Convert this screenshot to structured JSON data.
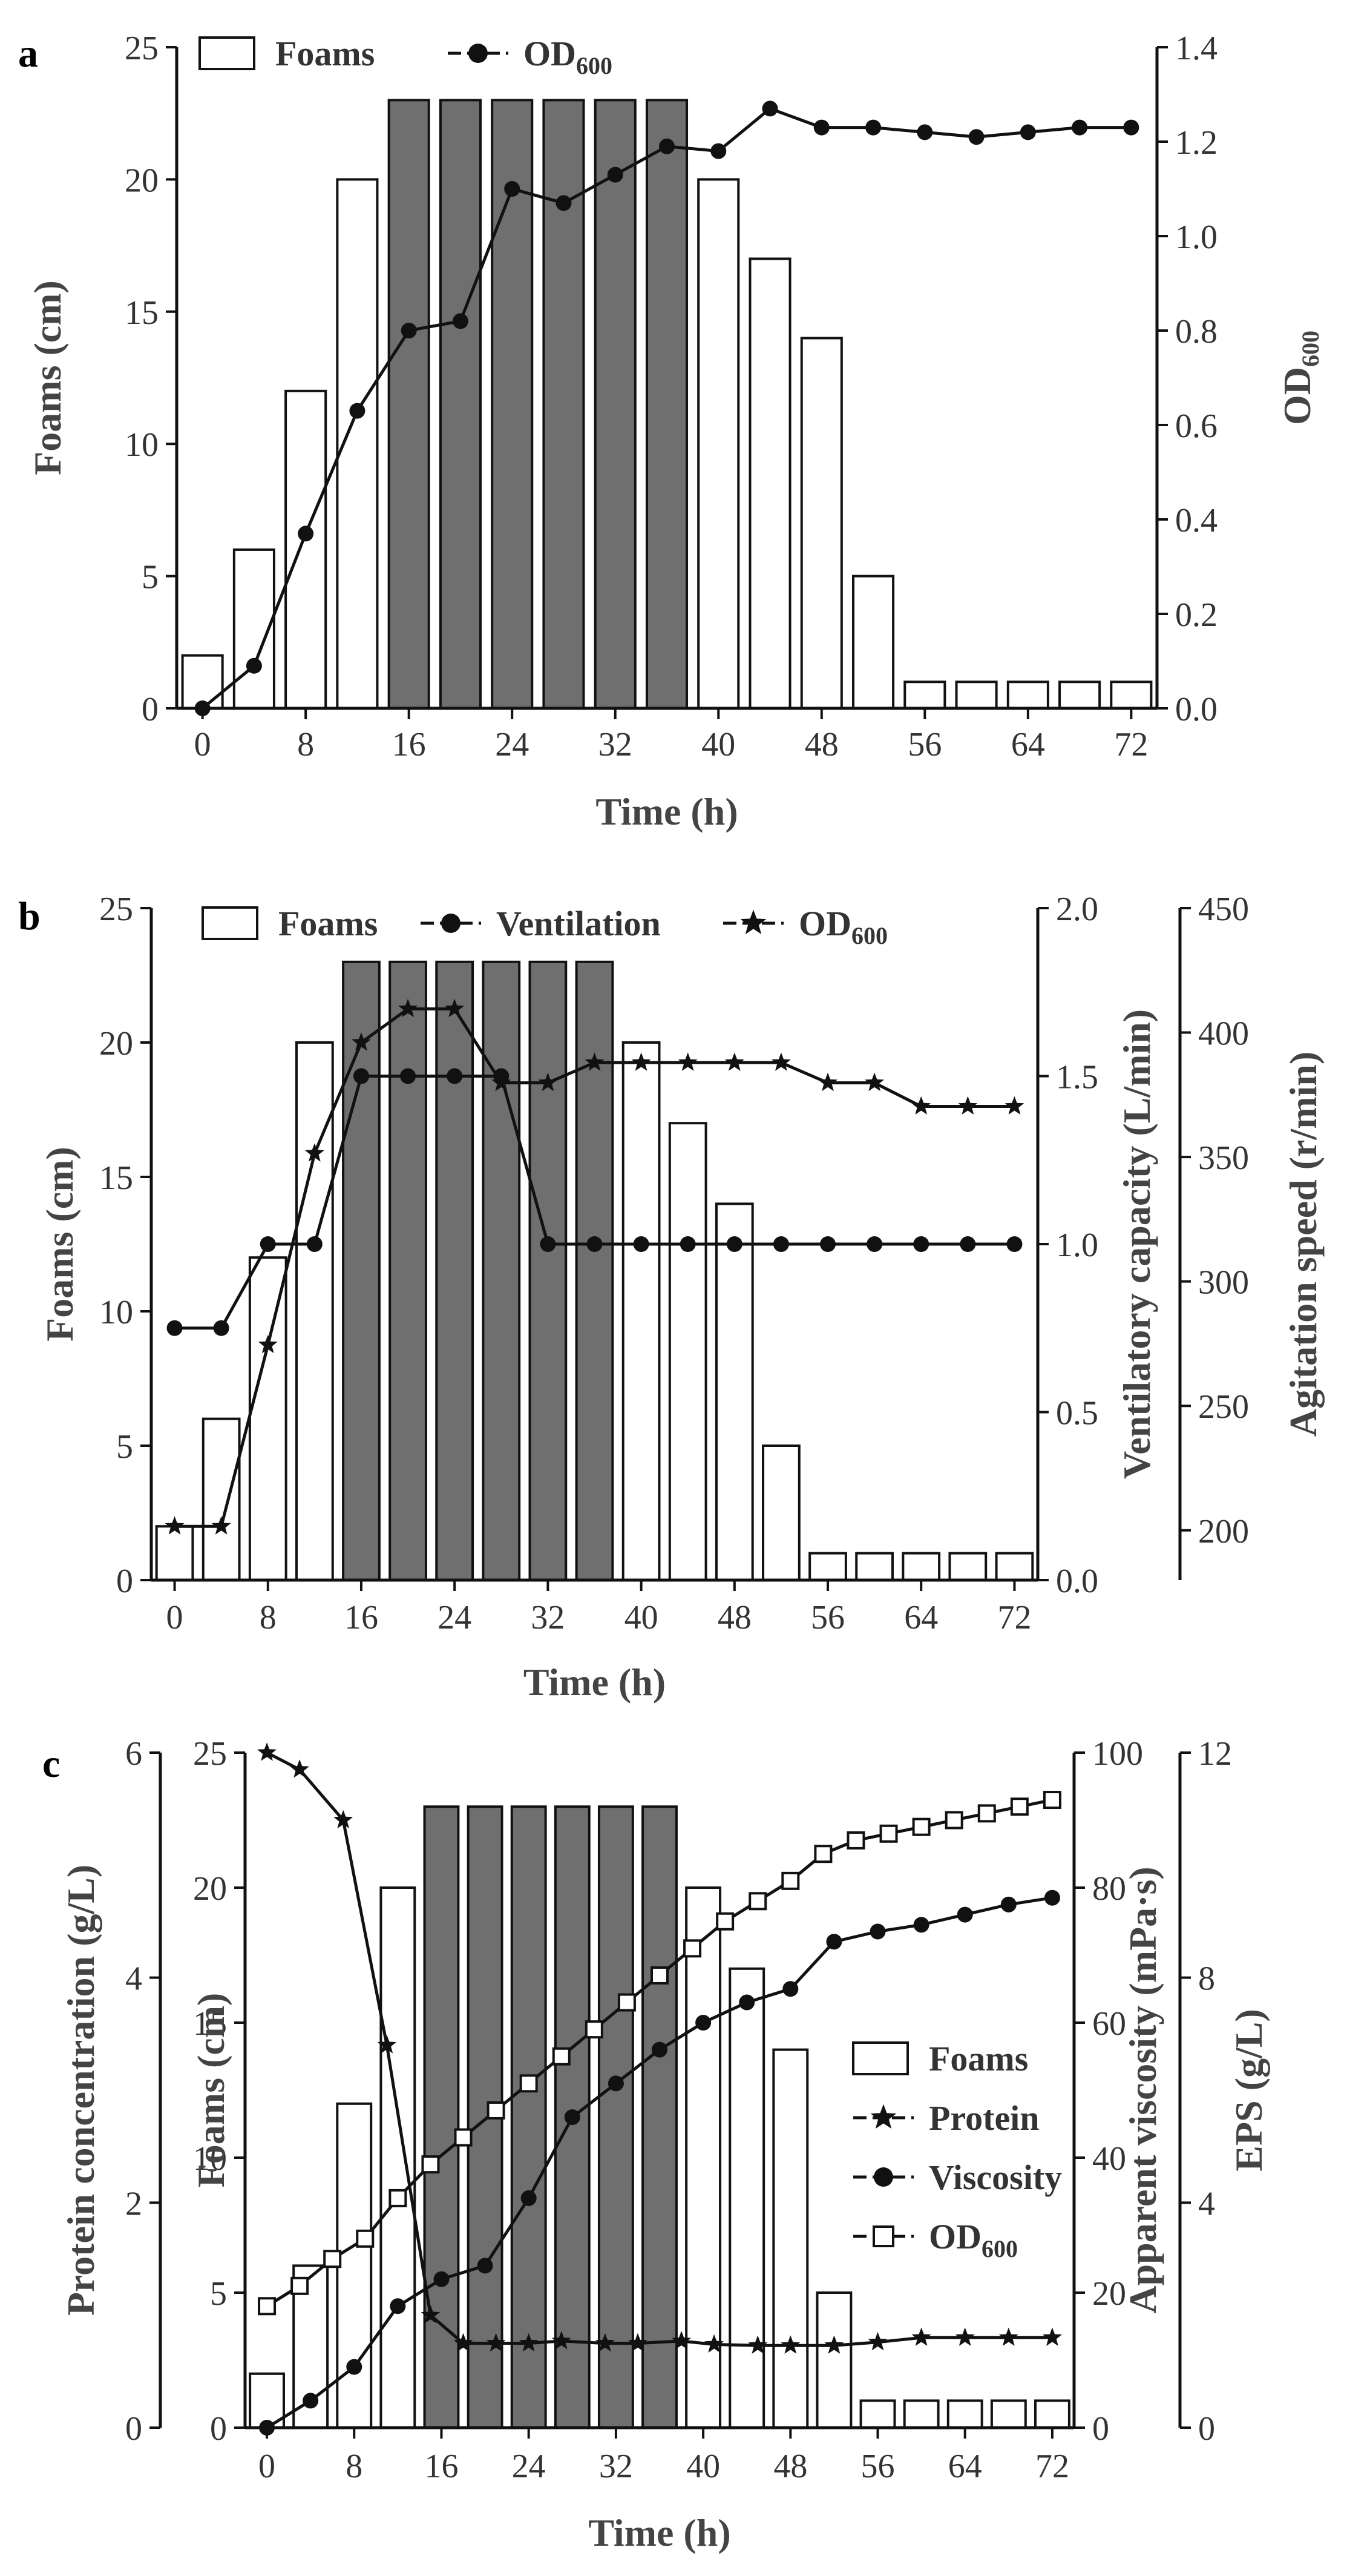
{
  "chart_data": [
    {
      "panel": "a",
      "type": "bar",
      "xlabel": "Time (h)",
      "x_ticks": [
        "0",
        "8",
        "16",
        "24",
        "32",
        "40",
        "48",
        "56",
        "64",
        "72"
      ],
      "xlim": [
        -2,
        74
      ],
      "left_axis": {
        "label": "Foams (cm)",
        "ylim": [
          0,
          25
        ],
        "ticks": [
          "0",
          "5",
          "10",
          "15",
          "20",
          "25"
        ]
      },
      "right_axes": [
        {
          "label": "OD600",
          "label_main": "OD",
          "label_sub": "600",
          "ylim": [
            0,
            1.4
          ],
          "ticks": [
            "0.0",
            "0.2",
            "0.4",
            "0.6",
            "0.8",
            "1.0",
            "1.2",
            "1.4"
          ]
        }
      ],
      "legend": [
        {
          "label": "Foams",
          "label_main": "Foams",
          "label_sub": "",
          "marker": "bar"
        },
        {
          "label": "OD600",
          "label_main": "OD",
          "label_sub": "600",
          "marker": "circle"
        }
      ],
      "bars": {
        "name": "Foams",
        "x": [
          0,
          4,
          8,
          12,
          16,
          20,
          24,
          28,
          32,
          36,
          40,
          44,
          48,
          52,
          56,
          60,
          64,
          68,
          72
        ],
        "values": [
          2,
          6,
          12,
          20,
          23,
          23,
          23,
          23,
          23,
          23,
          20,
          17,
          14,
          5,
          1,
          1,
          1,
          1,
          1
        ],
        "shaded": [
          false,
          false,
          false,
          false,
          true,
          true,
          true,
          true,
          true,
          true,
          false,
          false,
          false,
          false,
          false,
          false,
          false,
          false,
          false
        ]
      },
      "series": [
        {
          "name": "OD600",
          "axis": 0,
          "marker": "circle",
          "x": [
            0,
            4,
            8,
            12,
            16,
            20,
            24,
            28,
            32,
            36,
            40,
            44,
            48,
            52,
            56,
            60,
            64,
            68,
            72
          ],
          "values": [
            0.0,
            0.09,
            0.37,
            0.63,
            0.8,
            0.82,
            1.1,
            1.07,
            1.13,
            1.19,
            1.18,
            1.27,
            1.23,
            1.23,
            1.22,
            1.21,
            1.22,
            1.23,
            1.23
          ]
        }
      ]
    },
    {
      "panel": "b",
      "type": "bar",
      "xlabel": "Time (h)",
      "x_ticks": [
        "0",
        "8",
        "16",
        "24",
        "32",
        "40",
        "48",
        "56",
        "64",
        "72"
      ],
      "xlim": [
        -2,
        74
      ],
      "left_axis": {
        "label": "Foams (cm)",
        "ylim": [
          0,
          25
        ],
        "ticks": [
          "0",
          "5",
          "10",
          "15",
          "20",
          "25"
        ]
      },
      "right_axes": [
        {
          "label": "Ventilatory capacity (L/min)",
          "ylim": [
            0,
            2.0
          ],
          "ticks": [
            "0.0",
            "0.5",
            "1.0",
            "1.5",
            "2.0"
          ]
        },
        {
          "label": "Agitation speed (r/min)",
          "ylim": [
            180,
            450
          ],
          "ticks": [
            "200",
            "250",
            "300",
            "350",
            "400",
            "450"
          ]
        }
      ],
      "legend": [
        {
          "label": "Foams",
          "label_main": "Foams",
          "label_sub": "",
          "marker": "bar"
        },
        {
          "label": "Ventilation",
          "label_main": "Ventilation",
          "label_sub": "",
          "marker": "circle"
        },
        {
          "label": "OD600",
          "label_main": "OD",
          "label_sub": "600",
          "marker": "star"
        }
      ],
      "bars": {
        "name": "Foams",
        "x": [
          0,
          4,
          8,
          12,
          16,
          20,
          24,
          28,
          32,
          36,
          40,
          44,
          48,
          52,
          56,
          60,
          64,
          68,
          72
        ],
        "values": [
          2,
          6,
          12,
          20,
          23,
          23,
          23,
          23,
          23,
          23,
          20,
          17,
          14,
          5,
          1,
          1,
          1,
          1,
          1
        ],
        "shaded": [
          false,
          false,
          false,
          false,
          true,
          true,
          true,
          true,
          true,
          true,
          false,
          false,
          false,
          false,
          false,
          false,
          false,
          false,
          false
        ]
      },
      "series": [
        {
          "name": "Ventilation",
          "axis": 0,
          "marker": "circle",
          "x": [
            0,
            4,
            8,
            12,
            16,
            20,
            24,
            28,
            32,
            36,
            40,
            44,
            48,
            52,
            56,
            60,
            64,
            68,
            72
          ],
          "values": [
            0.75,
            0.75,
            1.0,
            1.0,
            1.5,
            1.5,
            1.5,
            1.5,
            1.0,
            1.0,
            1.0,
            1.0,
            1.0,
            1.0,
            1.0,
            1.0,
            1.0,
            1.0,
            1.0
          ]
        },
        {
          "name": "OD600",
          "axis": 0,
          "marker": "star",
          "x": [
            0,
            4,
            8,
            12,
            16,
            20,
            24,
            28,
            32,
            36,
            40,
            44,
            48,
            52,
            56,
            60,
            64,
            68,
            72
          ],
          "values": [
            0.16,
            0.16,
            0.7,
            1.27,
            1.6,
            1.7,
            1.7,
            1.48,
            1.48,
            1.54,
            1.54,
            1.54,
            1.54,
            1.54,
            1.48,
            1.48,
            1.41,
            1.41,
            1.41
          ]
        }
      ]
    },
    {
      "panel": "c",
      "type": "bar",
      "xlabel": "Time (h)",
      "x_ticks": [
        "0",
        "8",
        "16",
        "24",
        "32",
        "40",
        "48",
        "56",
        "64",
        "72"
      ],
      "xlim": [
        -2,
        74
      ],
      "left_axis": {
        "label": "Foams (cm)",
        "ylim": [
          0,
          25
        ],
        "ticks": [
          "0",
          "5",
          "10",
          "15",
          "20",
          "25"
        ]
      },
      "outer_left_axis": {
        "label": "Protein concentration (g/L)",
        "ylim": [
          0,
          6
        ],
        "ticks": [
          "0",
          "2",
          "4",
          "6"
        ]
      },
      "right_axes": [
        {
          "label": "Apparent viscosity (mPa·s)",
          "ylim": [
            0,
            100
          ],
          "ticks": [
            "0",
            "20",
            "40",
            "60",
            "80",
            "100"
          ]
        },
        {
          "label": "EPS (g/L)",
          "ylim": [
            0,
            12
          ],
          "ticks": [
            "0",
            "4",
            "8",
            "12"
          ]
        }
      ],
      "legend": [
        {
          "label": "Foams",
          "label_main": "Foams",
          "label_sub": "",
          "marker": "bar"
        },
        {
          "label": "Protein",
          "label_main": "Protein",
          "label_sub": "",
          "marker": "star"
        },
        {
          "label": "Viscosity",
          "label_main": "Viscosity",
          "label_sub": "",
          "marker": "circle"
        },
        {
          "label": "OD600",
          "label_main": "OD",
          "label_sub": "600",
          "marker": "square"
        }
      ],
      "bars": {
        "name": "Foams",
        "x": [
          0,
          4,
          8,
          12,
          16,
          20,
          24,
          28,
          32,
          36,
          40,
          44,
          48,
          52,
          56,
          60,
          64,
          68,
          72
        ],
        "values": [
          2,
          6,
          12,
          20,
          23,
          23,
          23,
          23,
          23,
          23,
          20,
          17,
          14,
          5,
          1,
          1,
          1,
          1,
          1
        ],
        "shaded": [
          false,
          false,
          false,
          false,
          true,
          true,
          true,
          true,
          true,
          true,
          false,
          false,
          false,
          false,
          false,
          false,
          false,
          false,
          false
        ]
      },
      "series": [
        {
          "name": "Protein",
          "axis": "outer_left",
          "marker": "star",
          "x": [
            0,
            3,
            7,
            11,
            15,
            18,
            21,
            24,
            27,
            31,
            34,
            38,
            41,
            45,
            48,
            52,
            56,
            60,
            64,
            68,
            72
          ],
          "values": [
            6.0,
            5.85,
            5.4,
            3.4,
            1.0,
            0.75,
            0.75,
            0.75,
            0.77,
            0.75,
            0.75,
            0.77,
            0.74,
            0.73,
            0.73,
            0.73,
            0.76,
            0.8,
            0.8,
            0.8,
            0.8
          ]
        },
        {
          "name": "Viscosity",
          "axis": 0,
          "marker": "circle",
          "x": [
            0,
            4,
            8,
            12,
            16,
            20,
            24,
            28,
            32,
            36,
            40,
            44,
            48,
            52,
            56,
            60,
            64,
            68,
            72
          ],
          "values": [
            0,
            4,
            9,
            18,
            22,
            24,
            34,
            46,
            51,
            56,
            60,
            63,
            65,
            72,
            73.5,
            74.5,
            76,
            77.5,
            78.5
          ]
        },
        {
          "name": "OD600",
          "axis": 0,
          "marker": "square",
          "x": [
            0,
            3,
            6,
            9,
            12,
            15,
            18,
            21,
            24,
            27,
            30,
            33,
            36,
            39,
            42,
            45,
            48,
            51,
            54,
            57,
            60,
            63,
            66,
            69,
            72
          ],
          "values": [
            18,
            21,
            25,
            28,
            34,
            39,
            43,
            47,
            51,
            55,
            59,
            63,
            67,
            71,
            75,
            78,
            81,
            85,
            87,
            88,
            89,
            90,
            91,
            92,
            93
          ]
        }
      ]
    }
  ],
  "panels": [
    {
      "label": "a"
    },
    {
      "label": "b"
    },
    {
      "label": "c"
    }
  ]
}
